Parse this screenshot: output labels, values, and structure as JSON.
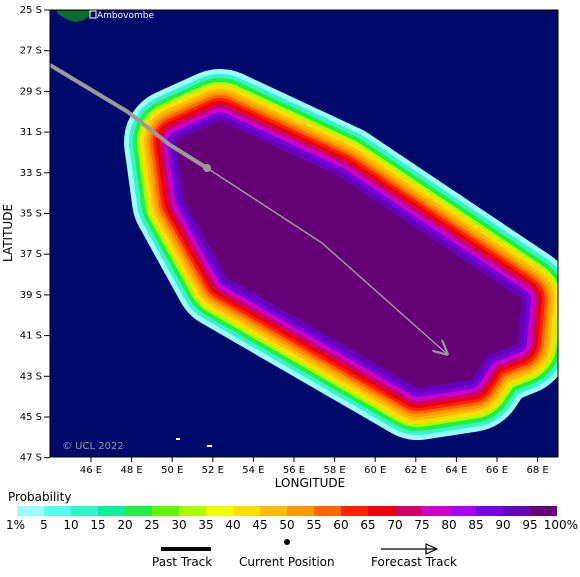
{
  "map": {
    "y_axis_title": "LATITUDE",
    "x_axis_title": "LONGITUDE",
    "lat_ticks": [
      "25 S",
      "27 S",
      "29 S",
      "31 S",
      "33 S",
      "35 S",
      "37 S",
      "39 S",
      "41 S",
      "43 S",
      "45 S",
      "47 S"
    ],
    "lon_ticks": [
      "46 E",
      "48 E",
      "50 E",
      "52 E",
      "54 E",
      "56 E",
      "58 E",
      "60 E",
      "62 E",
      "64 E",
      "66 E",
      "68 E"
    ],
    "place_label": "Ambovombe",
    "copyright": "© UCL 2022",
    "ocean_color": "#000a6b",
    "land_color": "#0d6b2e",
    "past_track_color": "#9a9a9a",
    "forecast_track_color": "#9a9a9a"
  },
  "legend": {
    "title": "Probability",
    "labels": [
      "1%",
      "5",
      "10",
      "15",
      "20",
      "25",
      "30",
      "35",
      "40",
      "45",
      "50",
      "55",
      "60",
      "65",
      "70",
      "75",
      "80",
      "85",
      "90",
      "95",
      "100%"
    ],
    "colors": [
      "#9cffff",
      "#55ffee",
      "#33f5cc",
      "#11ee99",
      "#22ee44",
      "#66f500",
      "#aaff00",
      "#eeff00",
      "#ffdd00",
      "#ffbb00",
      "#ff9900",
      "#ff6600",
      "#ff2200",
      "#ee0000",
      "#cc0066",
      "#cc00cc",
      "#aa00ee",
      "#7700dd",
      "#6600bb",
      "#660077"
    ]
  },
  "key": {
    "past_track": "Past Track",
    "current_position": "Current Position",
    "forecast_track": "Forecast Track"
  }
}
